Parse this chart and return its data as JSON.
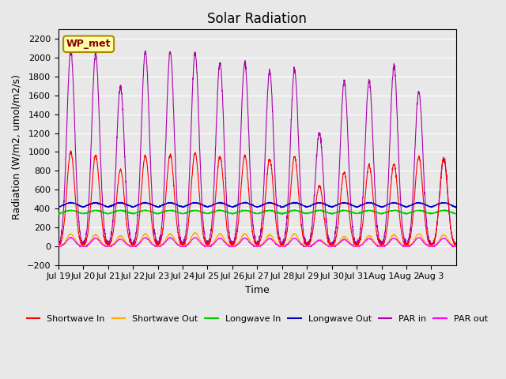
{
  "title": "Solar Radiation",
  "ylabel": "Radiation (W/m2, umol/m2/s)",
  "xlabel": "Time",
  "ylim": [
    -200,
    2300
  ],
  "yticks": [
    -200,
    0,
    200,
    400,
    600,
    800,
    1000,
    1200,
    1400,
    1600,
    1800,
    2000,
    2200
  ],
  "bg_color": "#e8e8e8",
  "station_label": "WP_met",
  "colors": {
    "shortwave_in": "#ff0000",
    "shortwave_out": "#ffaa00",
    "longwave_in": "#00cc00",
    "longwave_out": "#0000cc",
    "par_in": "#aa00aa",
    "par_out": "#ff00ff"
  },
  "legend": [
    {
      "label": "Shortwave In",
      "color": "#ff0000"
    },
    {
      "label": "Shortwave Out",
      "color": "#ffaa00"
    },
    {
      "label": "Longwave In",
      "color": "#00cc00"
    },
    {
      "label": "Longwave Out",
      "color": "#0000cc"
    },
    {
      "label": "PAR in",
      "color": "#aa00aa"
    },
    {
      "label": "PAR out",
      "color": "#ff00ff"
    }
  ],
  "xtick_labels": [
    "Jul 19",
    "Jul 20",
    "Jul 21",
    "Jul 22",
    "Jul 23",
    "Jul 24",
    "Jul 25",
    "Jul 26",
    "Jul 27",
    "Jul 28",
    "Jul 29",
    "Jul 30",
    "Jul 31",
    "Aug 1",
    "Aug 2",
    "Aug 3"
  ],
  "n_days": 16,
  "points_per_day": 144,
  "shortwave_in_peaks": [
    1000,
    960,
    810,
    960,
    970,
    990,
    950,
    960,
    920,
    950,
    640,
    780,
    860,
    870,
    950,
    930
  ],
  "shortwave_out_peaks": [
    130,
    120,
    110,
    130,
    130,
    140,
    130,
    130,
    120,
    130,
    70,
    100,
    110,
    120,
    130,
    120
  ],
  "longwave_in_base": 340,
  "longwave_out_base": 400,
  "par_in_peaks": [
    2080,
    2040,
    1700,
    2070,
    2060,
    2050,
    1950,
    1950,
    1860,
    1870,
    1210,
    1750,
    1760,
    1910,
    1650,
    930
  ],
  "par_out_peaks": [
    90,
    85,
    75,
    90,
    90,
    90,
    85,
    85,
    80,
    85,
    60,
    70,
    80,
    85,
    90,
    85
  ]
}
